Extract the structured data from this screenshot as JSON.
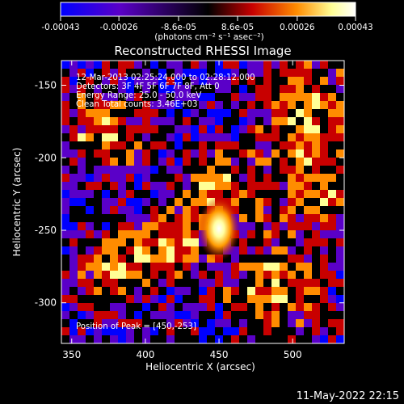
{
  "colorbar": {
    "tick_labels": [
      "-0.00043",
      "-0.00026",
      "-8.6e-05",
      "8.6e-05",
      "0.00026",
      "0.00043"
    ],
    "tick_values": [
      -0.00043,
      -0.00026,
      -8.6e-05,
      8.6e-05,
      0.00026,
      0.00043
    ],
    "range": [
      -0.00043,
      0.00043
    ],
    "unit_label": "(photons cm⁻² s⁻¹ asec⁻²)",
    "colors": [
      "#0000ff",
      "#5a00c8",
      "#000000",
      "#c80000",
      "#ff8c00",
      "#ffff96",
      "#ffffff"
    ]
  },
  "footer": {
    "date": "11-May-2022 22:15"
  },
  "chart_data": {
    "type": "heatmap",
    "title": "Reconstructed RHESSI Image",
    "xlabel": "Heliocentric X (arcsec)",
    "ylabel": "Heliocentric Y (arcsec)",
    "xlim": [
      343,
      535
    ],
    "ylim": [
      -328,
      -133
    ],
    "x_ticks": [
      350,
      400,
      450,
      500
    ],
    "y_ticks": [
      -150,
      -200,
      -250,
      -300
    ],
    "annotations": [
      "12-Mar-2013 02:25:24.000 to 02:28:12.000",
      "Detectors: 3F 4F 5F 6F 7F 8F, Att 0",
      "Energy Range: 25.0 - 50.0 keV",
      "Clean    Total counts: 3.46E+03"
    ],
    "peak_label": "Position of Peak = [450,-253]",
    "peak": [
      450,
      -253
    ]
  }
}
